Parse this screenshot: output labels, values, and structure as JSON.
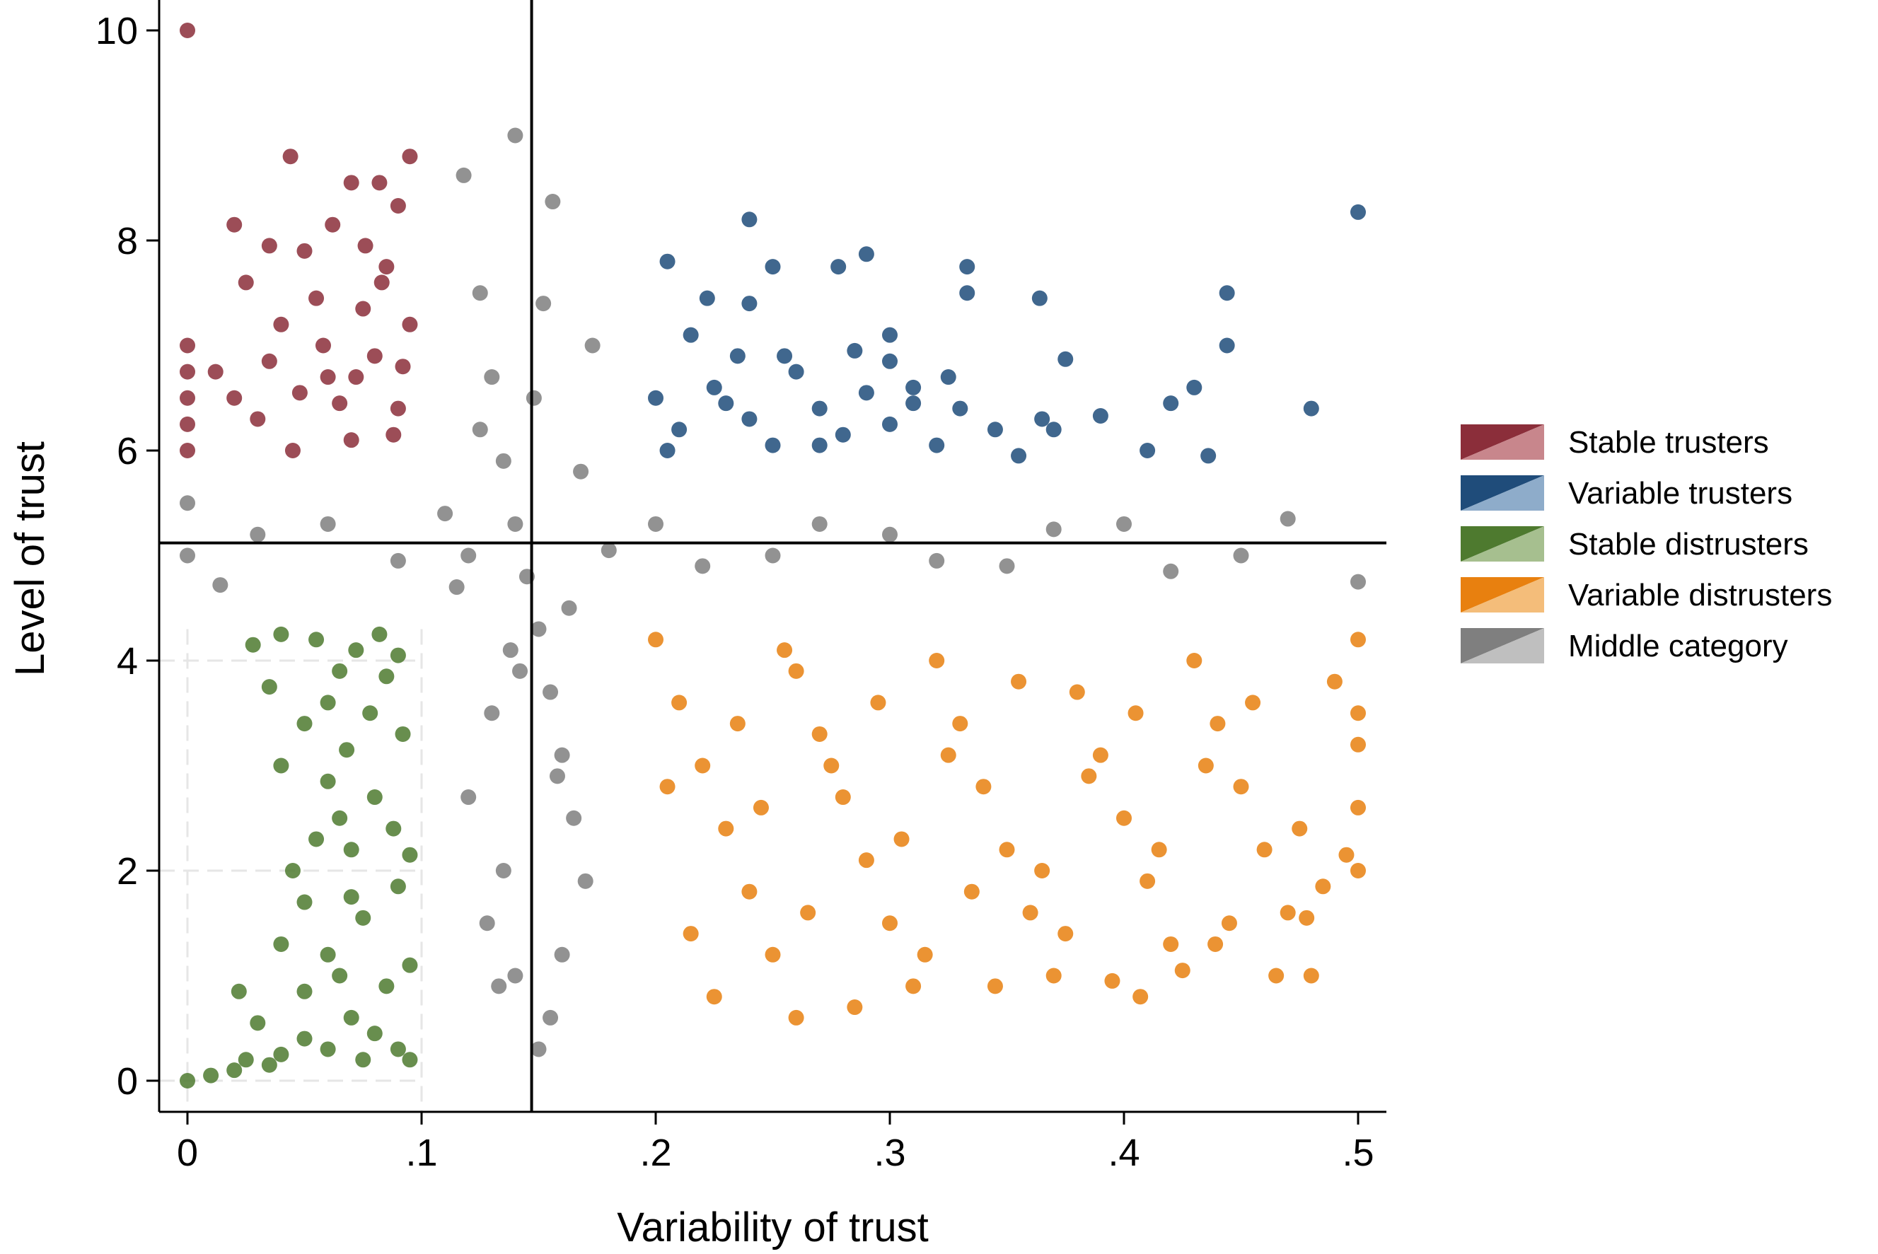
{
  "chart_data": {
    "type": "scatter",
    "title": "",
    "xlabel": "Variability of trust",
    "ylabel": "Level of trust",
    "xlim": [
      0,
      0.5
    ],
    "ylim": [
      0,
      10
    ],
    "x_ticks": [
      0,
      0.1,
      0.2,
      0.3,
      0.4,
      0.5
    ],
    "x_tick_labels": [
      "0",
      ".1",
      ".2",
      ".3",
      ".4",
      ".5"
    ],
    "y_ticks": [
      0,
      2,
      4,
      6,
      8,
      10
    ],
    "y_tick_labels": [
      "0",
      "2",
      "4",
      "6",
      "8",
      "10"
    ],
    "reference_lines": {
      "x": 0.147,
      "y": 5.12
    },
    "legend_position": "right",
    "series": [
      {
        "name": "Stable trusters",
        "color": "#8b2e3a",
        "light_color": "#c8868c",
        "points": [
          [
            0.0,
            10.0
          ],
          [
            0.044,
            8.8
          ],
          [
            0.095,
            8.8
          ],
          [
            0.07,
            8.55
          ],
          [
            0.082,
            8.55
          ],
          [
            0.09,
            8.33
          ],
          [
            0.02,
            8.15
          ],
          [
            0.062,
            8.15
          ],
          [
            0.035,
            7.95
          ],
          [
            0.05,
            7.9
          ],
          [
            0.076,
            7.95
          ],
          [
            0.085,
            7.75
          ],
          [
            0.0,
            7.0
          ],
          [
            0.0,
            6.75
          ],
          [
            0.0,
            6.5
          ],
          [
            0.0,
            6.25
          ],
          [
            0.0,
            6.0
          ],
          [
            0.012,
            6.75
          ],
          [
            0.02,
            6.5
          ],
          [
            0.03,
            6.3
          ],
          [
            0.045,
            6.0
          ],
          [
            0.06,
            6.7
          ],
          [
            0.07,
            6.1
          ],
          [
            0.08,
            6.9
          ],
          [
            0.09,
            6.4
          ],
          [
            0.095,
            7.2
          ],
          [
            0.025,
            7.6
          ],
          [
            0.04,
            7.2
          ],
          [
            0.055,
            7.45
          ],
          [
            0.065,
            6.45
          ],
          [
            0.075,
            7.35
          ],
          [
            0.088,
            6.15
          ],
          [
            0.035,
            6.85
          ],
          [
            0.048,
            6.55
          ],
          [
            0.058,
            7.0
          ],
          [
            0.072,
            6.7
          ],
          [
            0.083,
            7.6
          ],
          [
            0.092,
            6.8
          ]
        ]
      },
      {
        "name": "Variable trusters",
        "color": "#1f4c7a",
        "light_color": "#8eacca",
        "points": [
          [
            0.5,
            8.27
          ],
          [
            0.24,
            8.2
          ],
          [
            0.29,
            7.87
          ],
          [
            0.205,
            7.8
          ],
          [
            0.25,
            7.75
          ],
          [
            0.278,
            7.75
          ],
          [
            0.333,
            7.75
          ],
          [
            0.333,
            7.5
          ],
          [
            0.364,
            7.45
          ],
          [
            0.444,
            7.5
          ],
          [
            0.222,
            7.45
          ],
          [
            0.24,
            7.4
          ],
          [
            0.444,
            7.0
          ],
          [
            0.3,
            7.1
          ],
          [
            0.375,
            6.87
          ],
          [
            0.43,
            6.6
          ],
          [
            0.48,
            6.4
          ],
          [
            0.42,
            6.45
          ],
          [
            0.39,
            6.33
          ],
          [
            0.41,
            6.0
          ],
          [
            0.436,
            5.95
          ],
          [
            0.2,
            6.5
          ],
          [
            0.21,
            6.2
          ],
          [
            0.225,
            6.6
          ],
          [
            0.24,
            6.3
          ],
          [
            0.25,
            6.05
          ],
          [
            0.26,
            6.75
          ],
          [
            0.27,
            6.4
          ],
          [
            0.28,
            6.15
          ],
          [
            0.29,
            6.55
          ],
          [
            0.3,
            6.25
          ],
          [
            0.31,
            6.6
          ],
          [
            0.32,
            6.05
          ],
          [
            0.33,
            6.4
          ],
          [
            0.345,
            6.2
          ],
          [
            0.355,
            5.95
          ],
          [
            0.365,
            6.3
          ],
          [
            0.215,
            7.1
          ],
          [
            0.235,
            6.9
          ],
          [
            0.255,
            6.9
          ],
          [
            0.3,
            6.85
          ],
          [
            0.31,
            6.45
          ],
          [
            0.205,
            6.0
          ],
          [
            0.23,
            6.45
          ],
          [
            0.27,
            6.05
          ],
          [
            0.285,
            6.95
          ],
          [
            0.325,
            6.7
          ],
          [
            0.37,
            6.2
          ]
        ]
      },
      {
        "name": "Stable distrusters",
        "color": "#4e7a2f",
        "light_color": "#a6bf8f",
        "points": [
          [
            0.0,
            0.0
          ],
          [
            0.01,
            0.05
          ],
          [
            0.02,
            0.1
          ],
          [
            0.025,
            0.2
          ],
          [
            0.03,
            0.55
          ],
          [
            0.035,
            0.15
          ],
          [
            0.04,
            0.25
          ],
          [
            0.05,
            0.4
          ],
          [
            0.06,
            0.3
          ],
          [
            0.07,
            0.6
          ],
          [
            0.075,
            0.2
          ],
          [
            0.09,
            0.3
          ],
          [
            0.022,
            0.85
          ],
          [
            0.04,
            1.3
          ],
          [
            0.05,
            1.7
          ],
          [
            0.06,
            1.2
          ],
          [
            0.065,
            1.0
          ],
          [
            0.075,
            1.55
          ],
          [
            0.085,
            0.9
          ],
          [
            0.09,
            1.85
          ],
          [
            0.095,
            1.1
          ],
          [
            0.045,
            2.0
          ],
          [
            0.055,
            2.3
          ],
          [
            0.065,
            2.5
          ],
          [
            0.07,
            2.2
          ],
          [
            0.08,
            2.7
          ],
          [
            0.088,
            2.4
          ],
          [
            0.095,
            2.15
          ],
          [
            0.04,
            3.0
          ],
          [
            0.05,
            3.4
          ],
          [
            0.06,
            3.6
          ],
          [
            0.068,
            3.15
          ],
          [
            0.078,
            3.5
          ],
          [
            0.085,
            3.85
          ],
          [
            0.092,
            3.3
          ],
          [
            0.028,
            4.15
          ],
          [
            0.04,
            4.25
          ],
          [
            0.055,
            4.2
          ],
          [
            0.065,
            3.9
          ],
          [
            0.072,
            4.1
          ],
          [
            0.082,
            4.25
          ],
          [
            0.09,
            4.05
          ],
          [
            0.035,
            3.75
          ],
          [
            0.06,
            2.85
          ],
          [
            0.07,
            1.75
          ],
          [
            0.08,
            0.45
          ],
          [
            0.05,
            0.85
          ],
          [
            0.095,
            0.2
          ]
        ]
      },
      {
        "name": "Variable distrusters",
        "color": "#e8800f",
        "light_color": "#f4bd7a",
        "points": [
          [
            0.26,
            0.6
          ],
          [
            0.2,
            4.2
          ],
          [
            0.21,
            3.6
          ],
          [
            0.22,
            3.0
          ],
          [
            0.23,
            2.4
          ],
          [
            0.24,
            1.8
          ],
          [
            0.25,
            1.2
          ],
          [
            0.26,
            3.9
          ],
          [
            0.27,
            3.3
          ],
          [
            0.28,
            2.7
          ],
          [
            0.29,
            2.1
          ],
          [
            0.3,
            1.5
          ],
          [
            0.31,
            0.9
          ],
          [
            0.32,
            4.0
          ],
          [
            0.33,
            3.4
          ],
          [
            0.34,
            2.8
          ],
          [
            0.35,
            2.2
          ],
          [
            0.36,
            1.6
          ],
          [
            0.37,
            1.0
          ],
          [
            0.38,
            3.7
          ],
          [
            0.39,
            3.1
          ],
          [
            0.4,
            2.5
          ],
          [
            0.41,
            1.9
          ],
          [
            0.42,
            1.3
          ],
          [
            0.43,
            4.0
          ],
          [
            0.44,
            3.4
          ],
          [
            0.45,
            2.8
          ],
          [
            0.46,
            2.2
          ],
          [
            0.47,
            1.6
          ],
          [
            0.48,
            1.0
          ],
          [
            0.49,
            3.8
          ],
          [
            0.5,
            3.2
          ],
          [
            0.5,
            2.6
          ],
          [
            0.5,
            2.0
          ],
          [
            0.5,
            4.2
          ],
          [
            0.5,
            3.5
          ],
          [
            0.205,
            2.8
          ],
          [
            0.215,
            1.4
          ],
          [
            0.225,
            0.8
          ],
          [
            0.235,
            3.4
          ],
          [
            0.245,
            2.6
          ],
          [
            0.255,
            4.1
          ],
          [
            0.265,
            1.6
          ],
          [
            0.275,
            3.0
          ],
          [
            0.285,
            0.7
          ],
          [
            0.295,
            3.6
          ],
          [
            0.305,
            2.3
          ],
          [
            0.315,
            1.2
          ],
          [
            0.325,
            3.1
          ],
          [
            0.335,
            1.8
          ],
          [
            0.345,
            0.9
          ],
          [
            0.355,
            3.8
          ],
          [
            0.365,
            2.0
          ],
          [
            0.375,
            1.4
          ],
          [
            0.385,
            2.9
          ],
          [
            0.395,
            0.95
          ],
          [
            0.405,
            3.5
          ],
          [
            0.415,
            2.2
          ],
          [
            0.425,
            1.05
          ],
          [
            0.435,
            3.0
          ],
          [
            0.445,
            1.5
          ],
          [
            0.455,
            3.6
          ],
          [
            0.465,
            1.0
          ],
          [
            0.475,
            2.4
          ],
          [
            0.485,
            1.85
          ],
          [
            0.495,
            2.15
          ],
          [
            0.407,
            0.8
          ],
          [
            0.439,
            1.3
          ],
          [
            0.478,
            1.55
          ]
        ]
      },
      {
        "name": "Middle category",
        "color": "#7f7f7f",
        "light_color": "#bfbfbf",
        "points": [
          [
            0.0,
            5.0
          ],
          [
            0.0,
            5.5
          ],
          [
            0.014,
            4.72
          ],
          [
            0.14,
            9.0
          ],
          [
            0.156,
            8.37
          ],
          [
            0.118,
            8.62
          ],
          [
            0.13,
            6.7
          ],
          [
            0.135,
            5.9
          ],
          [
            0.14,
            5.3
          ],
          [
            0.145,
            4.8
          ],
          [
            0.15,
            4.3
          ],
          [
            0.155,
            3.7
          ],
          [
            0.16,
            3.1
          ],
          [
            0.165,
            2.5
          ],
          [
            0.17,
            1.9
          ],
          [
            0.16,
            1.2
          ],
          [
            0.155,
            0.6
          ],
          [
            0.15,
            0.3
          ],
          [
            0.125,
            6.2
          ],
          [
            0.13,
            3.5
          ],
          [
            0.135,
            2.0
          ],
          [
            0.14,
            1.0
          ],
          [
            0.12,
            5.0
          ],
          [
            0.115,
            4.7
          ],
          [
            0.2,
            5.3
          ],
          [
            0.25,
            5.0
          ],
          [
            0.3,
            5.2
          ],
          [
            0.35,
            4.9
          ],
          [
            0.4,
            5.3
          ],
          [
            0.45,
            5.0
          ],
          [
            0.5,
            4.75
          ],
          [
            0.47,
            5.35
          ],
          [
            0.42,
            4.85
          ],
          [
            0.37,
            5.25
          ],
          [
            0.32,
            4.95
          ],
          [
            0.27,
            5.3
          ],
          [
            0.22,
            4.9
          ],
          [
            0.18,
            5.05
          ],
          [
            0.06,
            5.3
          ],
          [
            0.09,
            4.95
          ],
          [
            0.03,
            5.2
          ],
          [
            0.11,
            5.4
          ],
          [
            0.12,
            2.7
          ],
          [
            0.128,
            1.5
          ],
          [
            0.133,
            0.9
          ],
          [
            0.142,
            3.9
          ],
          [
            0.148,
            6.5
          ],
          [
            0.152,
            7.4
          ],
          [
            0.158,
            2.9
          ],
          [
            0.163,
            4.5
          ],
          [
            0.168,
            5.8
          ],
          [
            0.173,
            7.0
          ],
          [
            0.125,
            7.5
          ],
          [
            0.138,
            4.1
          ]
        ]
      }
    ]
  }
}
